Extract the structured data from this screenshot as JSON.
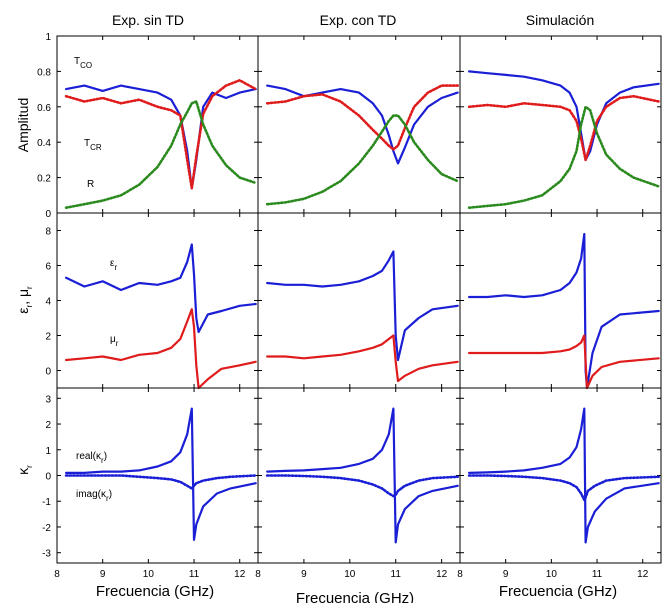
{
  "columns": [
    {
      "title": "Exp. sin TD",
      "xlabel": "Frecuencia (GHz)"
    },
    {
      "title": "Exp. con TD",
      "xlabel": "Frecuencia (GHz)"
    },
    {
      "title": "Simulación",
      "xlabel": "Frecuencia (GHz)"
    }
  ],
  "rows": [
    {
      "ylabel": "Amplitud",
      "ylabel_sub": "",
      "yticks": [
        "0",
        "0.2",
        "0.4",
        "0.6",
        "0.8",
        "1"
      ]
    },
    {
      "ylabel": "ε",
      "ylabel_sub": "r",
      "ylabel_tail": ", μ",
      "ylabel_sub2": "r",
      "yticks": [
        "0",
        "2",
        "4",
        "6",
        "8"
      ]
    },
    {
      "ylabel": "κ",
      "ylabel_sub": "r",
      "yticks": [
        "-3",
        "-2",
        "-1",
        "0",
        "1",
        "2",
        "3"
      ]
    }
  ],
  "xticks": [
    "8",
    "9",
    "10",
    "11",
    "12"
  ],
  "annotations": {
    "tco": {
      "main": "T",
      "sub": "CO"
    },
    "tcr": {
      "main": "T",
      "sub": "CR"
    },
    "r": {
      "main": "R"
    },
    "eps": {
      "main": "ε",
      "sub": "r"
    },
    "mu": {
      "main": "μ",
      "sub": "r"
    },
    "real": {
      "main": "real(κ",
      "sub": "r",
      "tail": ")"
    },
    "imag": {
      "main": "imag(κ",
      "sub": "r",
      "tail": ")"
    }
  },
  "colors": {
    "blue": "#1a1fd6",
    "red": "#e01b1b",
    "green": "#2a8a1e"
  },
  "chart_data": [
    {
      "type": "line",
      "panel": "Exp. sin TD / Amplitud",
      "xlim": [
        8,
        12.4
      ],
      "ylim": [
        0,
        1
      ],
      "x": [
        8.2,
        8.6,
        9.0,
        9.4,
        9.8,
        10.2,
        10.5,
        10.7,
        10.85,
        10.95,
        11.05,
        11.2,
        11.4,
        11.7,
        12.0,
        12.35
      ],
      "series": [
        {
          "name": "TCO",
          "style": "solid",
          "color": "blue",
          "values": [
            0.7,
            0.72,
            0.69,
            0.72,
            0.7,
            0.68,
            0.64,
            0.55,
            0.35,
            0.14,
            0.3,
            0.6,
            0.68,
            0.65,
            0.68,
            0.7
          ]
        },
        {
          "name": "TCR",
          "style": "dotted",
          "color": "red",
          "values": [
            0.66,
            0.63,
            0.65,
            0.62,
            0.64,
            0.6,
            0.58,
            0.55,
            0.3,
            0.14,
            0.32,
            0.56,
            0.66,
            0.72,
            0.75,
            0.7
          ]
        },
        {
          "name": "R",
          "style": "dotted",
          "color": "green",
          "values": [
            0.03,
            0.05,
            0.07,
            0.1,
            0.16,
            0.26,
            0.38,
            0.5,
            0.57,
            0.62,
            0.63,
            0.5,
            0.38,
            0.27,
            0.2,
            0.17
          ]
        }
      ]
    },
    {
      "type": "line",
      "panel": "Exp. con TD / Amplitud",
      "xlim": [
        8,
        12.4
      ],
      "ylim": [
        0,
        1
      ],
      "x": [
        8.2,
        8.6,
        9.0,
        9.4,
        9.8,
        10.2,
        10.5,
        10.7,
        10.85,
        10.95,
        11.05,
        11.2,
        11.4,
        11.7,
        12.0,
        12.35
      ],
      "series": [
        {
          "name": "TCO",
          "style": "solid",
          "color": "blue",
          "values": [
            0.72,
            0.7,
            0.66,
            0.68,
            0.7,
            0.68,
            0.62,
            0.55,
            0.44,
            0.35,
            0.28,
            0.37,
            0.5,
            0.6,
            0.65,
            0.68
          ]
        },
        {
          "name": "TCR",
          "style": "dotted",
          "color": "red",
          "values": [
            0.62,
            0.63,
            0.66,
            0.67,
            0.63,
            0.55,
            0.47,
            0.42,
            0.38,
            0.36,
            0.38,
            0.48,
            0.6,
            0.68,
            0.72,
            0.72
          ]
        },
        {
          "name": "R",
          "style": "dotted",
          "color": "green",
          "values": [
            0.05,
            0.06,
            0.08,
            0.12,
            0.18,
            0.28,
            0.38,
            0.46,
            0.52,
            0.55,
            0.55,
            0.5,
            0.4,
            0.3,
            0.22,
            0.18
          ]
        }
      ]
    },
    {
      "type": "line",
      "panel": "Simulación / Amplitud",
      "xlim": [
        8,
        12.4
      ],
      "ylim": [
        0,
        1
      ],
      "x": [
        8.2,
        8.6,
        9.0,
        9.4,
        9.8,
        10.2,
        10.4,
        10.55,
        10.65,
        10.75,
        10.85,
        11.0,
        11.2,
        11.5,
        11.8,
        12.35
      ],
      "series": [
        {
          "name": "TCO",
          "style": "solid",
          "color": "blue",
          "values": [
            0.8,
            0.79,
            0.78,
            0.77,
            0.75,
            0.72,
            0.68,
            0.6,
            0.45,
            0.3,
            0.35,
            0.5,
            0.62,
            0.68,
            0.71,
            0.73
          ]
        },
        {
          "name": "TCR",
          "style": "dotted",
          "color": "red",
          "values": [
            0.6,
            0.61,
            0.6,
            0.62,
            0.61,
            0.6,
            0.58,
            0.52,
            0.42,
            0.3,
            0.38,
            0.52,
            0.6,
            0.65,
            0.66,
            0.63
          ]
        },
        {
          "name": "R",
          "style": "dotted",
          "color": "green",
          "values": [
            0.03,
            0.04,
            0.05,
            0.07,
            0.1,
            0.18,
            0.25,
            0.35,
            0.5,
            0.6,
            0.58,
            0.45,
            0.33,
            0.25,
            0.2,
            0.15
          ]
        }
      ]
    },
    {
      "type": "line",
      "panel": "Exp. sin TD / εr, μr",
      "xlim": [
        8,
        12.4
      ],
      "ylim": [
        -1,
        9
      ],
      "x": [
        8.2,
        8.6,
        9.0,
        9.4,
        9.8,
        10.2,
        10.5,
        10.7,
        10.85,
        10.95,
        11.0,
        11.05,
        11.1,
        11.3,
        11.6,
        12.0,
        12.35
      ],
      "series": [
        {
          "name": "εr",
          "style": "solid",
          "color": "blue",
          "values": [
            5.3,
            4.8,
            5.1,
            4.6,
            5.0,
            4.9,
            5.1,
            5.3,
            6.2,
            7.2,
            5.5,
            3.0,
            2.2,
            3.2,
            3.4,
            3.7,
            3.8
          ]
        },
        {
          "name": "μr",
          "style": "solid",
          "color": "red",
          "values": [
            0.6,
            0.7,
            0.8,
            0.6,
            0.9,
            1.0,
            1.3,
            1.8,
            2.8,
            3.5,
            2.5,
            0.3,
            -1.0,
            -0.5,
            0.1,
            0.3,
            0.5
          ]
        }
      ]
    },
    {
      "type": "line",
      "panel": "Exp. con TD / εr, μr",
      "xlim": [
        8,
        12.4
      ],
      "ylim": [
        -1,
        9
      ],
      "x": [
        8.2,
        8.6,
        9.0,
        9.4,
        9.8,
        10.2,
        10.5,
        10.7,
        10.85,
        10.95,
        11.0,
        11.05,
        11.2,
        11.5,
        11.8,
        12.35
      ],
      "series": [
        {
          "name": "εr",
          "style": "solid",
          "color": "blue",
          "values": [
            5.0,
            4.9,
            4.9,
            4.8,
            4.9,
            5.1,
            5.4,
            5.7,
            6.3,
            6.8,
            2.0,
            0.6,
            2.3,
            3.0,
            3.5,
            3.7
          ]
        },
        {
          "name": "μr",
          "style": "solid",
          "color": "red",
          "values": [
            0.8,
            0.8,
            0.7,
            0.8,
            0.9,
            1.1,
            1.3,
            1.5,
            1.8,
            2.0,
            0.5,
            -0.6,
            -0.3,
            0.1,
            0.3,
            0.5
          ]
        }
      ]
    },
    {
      "type": "line",
      "panel": "Simulación / εr, μr",
      "xlim": [
        8,
        12.4
      ],
      "ylim": [
        -1,
        9
      ],
      "x": [
        8.2,
        8.6,
        9.0,
        9.4,
        9.8,
        10.2,
        10.4,
        10.55,
        10.65,
        10.72,
        10.75,
        10.78,
        10.9,
        11.1,
        11.5,
        12.35
      ],
      "series": [
        {
          "name": "εr",
          "style": "solid",
          "color": "blue",
          "values": [
            4.2,
            4.2,
            4.3,
            4.2,
            4.3,
            4.6,
            5.0,
            5.6,
            6.4,
            7.8,
            0.0,
            -1.0,
            1.0,
            2.5,
            3.2,
            3.4
          ]
        },
        {
          "name": "μr",
          "style": "solid",
          "color": "red",
          "values": [
            1.0,
            1.0,
            1.0,
            1.0,
            1.0,
            1.1,
            1.2,
            1.4,
            1.6,
            2.0,
            0.5,
            -1.0,
            -0.3,
            0.2,
            0.5,
            0.7
          ]
        }
      ]
    },
    {
      "type": "line",
      "panel": "Exp. sin TD / κr",
      "xlim": [
        8,
        12.4
      ],
      "ylim": [
        -3.4,
        3.4
      ],
      "x": [
        8.2,
        8.6,
        9.0,
        9.4,
        9.8,
        10.2,
        10.5,
        10.7,
        10.85,
        10.95,
        11.0,
        11.05,
        11.2,
        11.5,
        11.8,
        12.35
      ],
      "series": [
        {
          "name": "real(κr)",
          "style": "solid",
          "color": "blue",
          "values": [
            0.1,
            0.1,
            0.15,
            0.15,
            0.2,
            0.35,
            0.55,
            0.9,
            1.6,
            2.6,
            -2.5,
            -1.9,
            -1.2,
            -0.7,
            -0.5,
            -0.3
          ]
        },
        {
          "name": "imag(κr)",
          "style": "dotted",
          "color": "blue",
          "values": [
            0.0,
            0.0,
            0.0,
            0.0,
            -0.05,
            -0.1,
            -0.15,
            -0.25,
            -0.4,
            -0.5,
            -0.4,
            -0.3,
            -0.2,
            -0.1,
            -0.05,
            0.0
          ]
        }
      ]
    },
    {
      "type": "line",
      "panel": "Exp. con TD / κr",
      "xlim": [
        8,
        12.4
      ],
      "ylim": [
        -3.4,
        3.4
      ],
      "x": [
        8.2,
        8.6,
        9.0,
        9.4,
        9.8,
        10.2,
        10.5,
        10.7,
        10.85,
        10.95,
        11.0,
        11.05,
        11.2,
        11.5,
        11.8,
        12.35
      ],
      "series": [
        {
          "name": "real(κr)",
          "style": "solid",
          "color": "blue",
          "values": [
            0.15,
            0.18,
            0.2,
            0.25,
            0.3,
            0.45,
            0.65,
            1.0,
            1.6,
            2.6,
            -2.6,
            -1.9,
            -1.3,
            -0.8,
            -0.6,
            -0.4
          ]
        },
        {
          "name": "imag(κr)",
          "style": "dotted",
          "color": "blue",
          "values": [
            0.0,
            0.0,
            -0.02,
            -0.05,
            -0.1,
            -0.2,
            -0.35,
            -0.5,
            -0.7,
            -0.8,
            -0.75,
            -0.6,
            -0.4,
            -0.2,
            -0.1,
            -0.05
          ]
        }
      ]
    },
    {
      "type": "line",
      "panel": "Simulación / κr",
      "xlim": [
        8,
        12.4
      ],
      "ylim": [
        -3.4,
        3.4
      ],
      "x": [
        8.2,
        8.6,
        9.0,
        9.4,
        9.8,
        10.2,
        10.4,
        10.55,
        10.65,
        10.72,
        10.75,
        10.8,
        10.95,
        11.2,
        11.6,
        12.35
      ],
      "series": [
        {
          "name": "real(κr)",
          "style": "solid",
          "color": "blue",
          "values": [
            0.1,
            0.12,
            0.15,
            0.2,
            0.3,
            0.45,
            0.7,
            1.1,
            1.8,
            2.6,
            -2.6,
            -2.0,
            -1.4,
            -0.9,
            -0.5,
            -0.3
          ]
        },
        {
          "name": "imag(κr)",
          "style": "dotted",
          "color": "blue",
          "values": [
            0.0,
            0.0,
            -0.02,
            -0.05,
            -0.1,
            -0.2,
            -0.3,
            -0.45,
            -0.7,
            -0.95,
            -0.85,
            -0.6,
            -0.4,
            -0.2,
            -0.1,
            -0.05
          ]
        }
      ]
    }
  ]
}
